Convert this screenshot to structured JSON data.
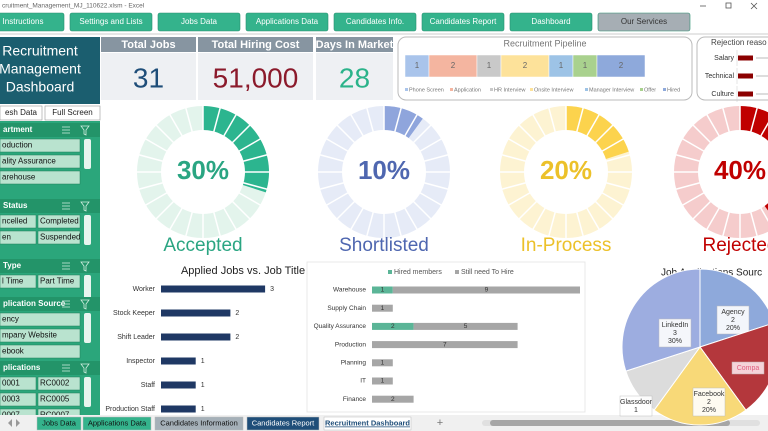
{
  "window_title": "cruitment_Management_MJ_110622.xlsm - Excel",
  "nav": [
    "Instructions",
    "Settings and Lists",
    "Jobs Data",
    "Applications Data",
    "Candidates Info.",
    "Candidates Report",
    "Dashboard",
    "Our Services"
  ],
  "sidebar": {
    "title": [
      "Recruitment",
      "Management",
      "Dashboard"
    ],
    "buttons": [
      "esh Data",
      "Full Screen"
    ],
    "slicers": [
      {
        "title": "artment",
        "items": [
          "oduction",
          "ality Assurance",
          "arehouse"
        ]
      },
      {
        "title": "Status",
        "items": [
          "ncelled",
          "Completed",
          "en",
          "Suspended"
        ]
      },
      {
        "title": "Type",
        "items": [
          "l Time",
          "Part Time"
        ]
      },
      {
        "title": "plication Source",
        "items": [
          "ency",
          "mpany Website",
          "ebook"
        ]
      },
      {
        "title": "plications",
        "items": [
          "0001",
          "RC0002",
          "0003",
          "RC0005",
          "0007",
          "RC0007"
        ]
      }
    ]
  },
  "kpis": [
    {
      "label": "Total Jobs",
      "value": 31,
      "color": "#1f4e79"
    },
    {
      "label": "Total Hiring Cost",
      "value": 51000,
      "value_label": "51,000",
      "color": "#8b1a2b"
    },
    {
      "label": "Days In Market",
      "value": 28,
      "color": "#2bb38a"
    }
  ],
  "pipeline": {
    "title": "Recruitment Pipeline",
    "stages": [
      {
        "name": "Phone Screen",
        "value": 1,
        "color": "#a9c4eb"
      },
      {
        "name": "Application",
        "value": 2,
        "color": "#f4b5a0"
      },
      {
        "name": "HR Interview",
        "value": 1,
        "color": "#c9c9c9"
      },
      {
        "name": "Onsite Interview",
        "value": 2,
        "color": "#fde29a"
      },
      {
        "name": "Manager Interview",
        "value": 1,
        "color": "#9dc3e6"
      },
      {
        "name": "Offer",
        "value": 1,
        "color": "#a9d18e"
      },
      {
        "name": "Hired",
        "value": 2,
        "color": "#8ea9db"
      }
    ]
  },
  "rejection": {
    "title": "Rejection reaso",
    "color": "#8b0000",
    "reasons": [
      {
        "name": "Salary",
        "value": 1
      },
      {
        "name": "Technical",
        "value": 1
      },
      {
        "name": "Culture",
        "value": 1
      }
    ]
  },
  "status": [
    {
      "name": "Accepted",
      "value": 30,
      "value_label": "30%",
      "color": "#2cb58f",
      "light": "#e3f4ec",
      "text_color": "#2aa582"
    },
    {
      "name": "Shortlisted",
      "value": 10,
      "value_label": "10%",
      "color": "#8fa5dc",
      "light": "#e6ebf7",
      "text_color": "#4f67b0"
    },
    {
      "name": "In-Process",
      "value": 20,
      "value_label": "20%",
      "color": "#fcd34d",
      "light": "#fdf3d2",
      "text_color": "#ecc12a"
    },
    {
      "name": "Rejected",
      "value": 40,
      "value_label": "40%",
      "color": "#c00000",
      "light": "#f5cccc",
      "text_color": "#c00000"
    }
  ],
  "applied_jobs": {
    "title": "Applied Jobs vs. Job Title",
    "color": "#1f3864",
    "categories": [
      "Worker",
      "Stock Keeper",
      "Shift Leader",
      "Inspector",
      "Staff",
      "Production Staff"
    ],
    "values": [
      3,
      2,
      2,
      1,
      1,
      1
    ]
  },
  "hiring": {
    "categories": [
      "Warehouse",
      "Supply Chain",
      "Quality Assurance",
      "Production",
      "Planning",
      "IT",
      "Finance"
    ],
    "series": [
      {
        "name": "Hired members",
        "color": "#5bb597",
        "values": [
          1,
          0,
          2,
          0,
          0,
          0,
          0
        ]
      },
      {
        "name": "Still need To Hire",
        "color": "#a6a6a6",
        "values": [
          9,
          1,
          5,
          7,
          1,
          1,
          2
        ]
      }
    ]
  },
  "sources": {
    "title": "Job Applications Sourc",
    "slices": [
      {
        "value": 2,
        "color": "#8ea9db",
        "label": {
          "name": "Agency",
          "count": 2,
          "pct": "20%"
        }
      },
      {
        "value": 2,
        "color": "#b4373c",
        "label": {
          "name": "Compa"
        }
      },
      {
        "value": 2,
        "color": "#f8d978",
        "label": {
          "name": "Facebook",
          "count": 2,
          "pct": "20%"
        }
      },
      {
        "value": 1,
        "color": "#dcdcdc",
        "label": {
          "name": "Glassdoor",
          "count": 1
        }
      },
      {
        "value": 3,
        "color": "#9dade0",
        "label": {
          "name": "LinkedIn",
          "count": 3,
          "pct": "30%"
        }
      }
    ]
  },
  "sheet_tabs": [
    "Jobs Data",
    "Applications Data",
    "Candidates Information",
    "Candidates Report",
    "Recruitment Dashboard"
  ]
}
